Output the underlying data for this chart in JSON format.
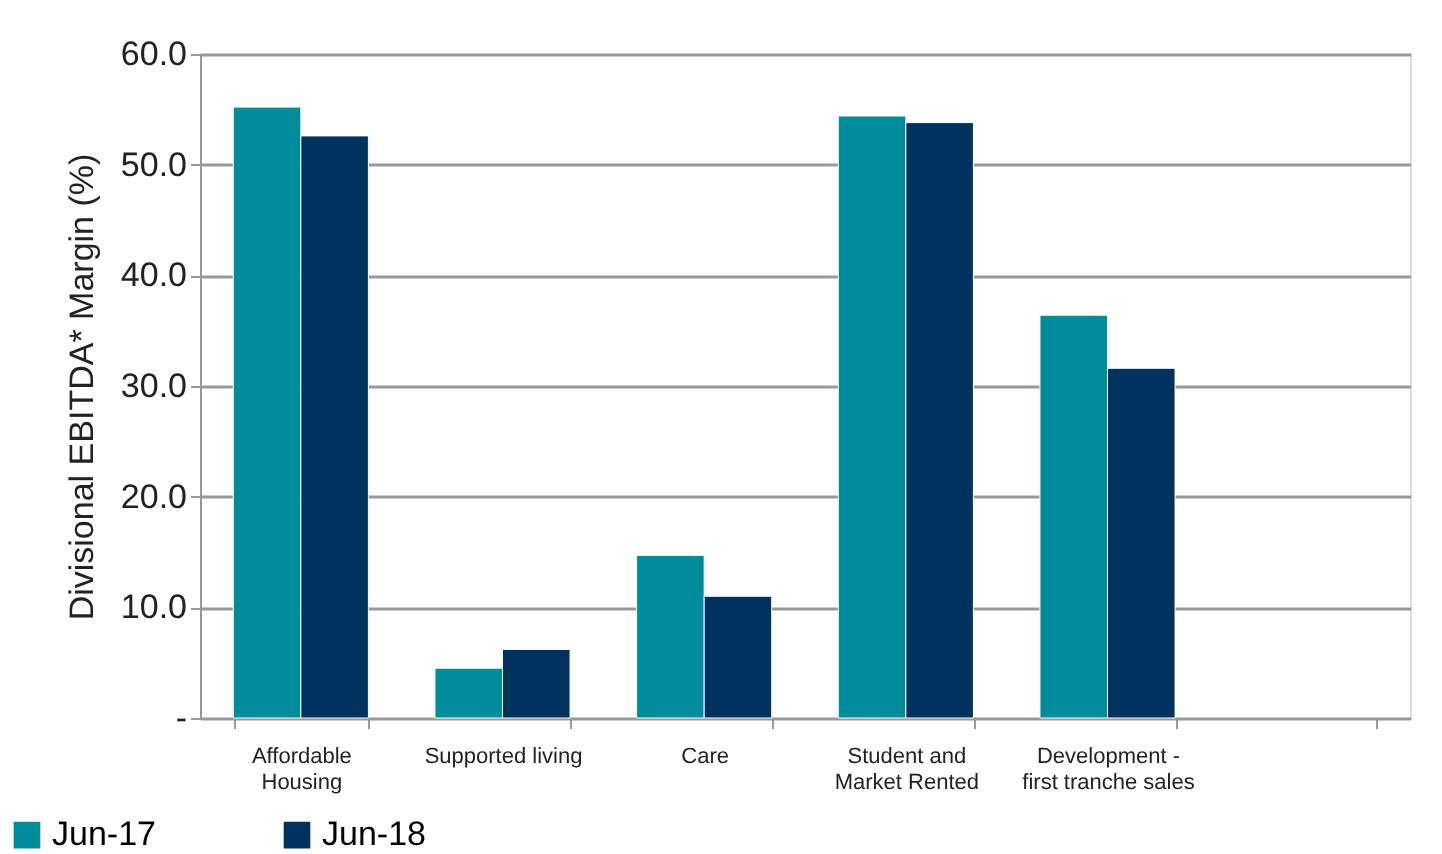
{
  "chart_data": {
    "type": "bar",
    "ylabel": "Divisional EBITDA*  Margin (%)",
    "categories": [
      "Affordable Housing",
      "Supported living",
      "Care",
      "Student and Market Rented",
      "Development - first tranche sales",
      null
    ],
    "series": [
      {
        "name": "Jun-17",
        "color": "#008c9a",
        "values": [
          55.2,
          4.5,
          14.7,
          54.4,
          36.4,
          null
        ]
      },
      {
        "name": "Jun-18",
        "color": "#00325f",
        "values": [
          52.6,
          6.2,
          11.0,
          53.8,
          31.6,
          null
        ]
      }
    ],
    "ylim": [
      0,
      60
    ],
    "yticks": [
      {
        "value": 0,
        "label": "-"
      },
      {
        "value": 10,
        "label": "10.0"
      },
      {
        "value": 20,
        "label": "20.0"
      },
      {
        "value": 30,
        "label": "30.0"
      },
      {
        "value": 40,
        "label": "40.0"
      },
      {
        "value": 50,
        "label": "50.0"
      },
      {
        "value": 60,
        "label": "60.0"
      }
    ],
    "grid": "y",
    "legend": "bottom left"
  }
}
